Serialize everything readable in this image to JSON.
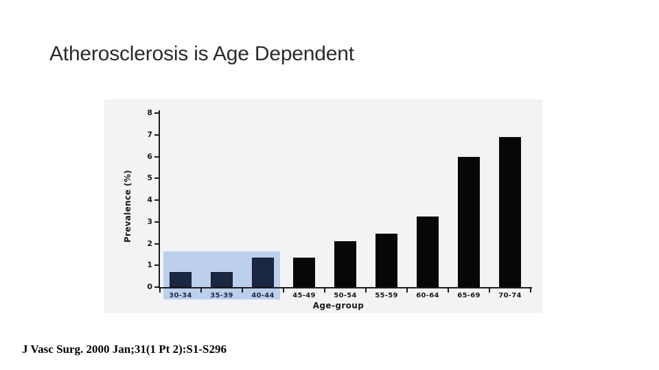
{
  "slide": {
    "title": "Atherosclerosis is Age Dependent",
    "citation": "J Vasc Surg. 2000 Jan;31(1 Pt 2):S1-S296"
  },
  "chart_data": {
    "type": "bar",
    "title": "",
    "xlabel": "Age-group",
    "ylabel": "Prevalence (%)",
    "categories": [
      "30-34",
      "35-39",
      "40-44",
      "45-49",
      "50-54",
      "55-59",
      "60-64",
      "65-69",
      "70-74"
    ],
    "values": [
      0.7,
      0.7,
      1.35,
      1.35,
      2.1,
      2.45,
      3.25,
      6.0,
      6.9
    ],
    "ylim": [
      0,
      8
    ],
    "ytick_step": 1,
    "yticks": [
      0,
      1,
      2,
      3,
      4,
      5,
      6,
      7,
      8
    ],
    "grid": false,
    "legend": null,
    "colors": {
      "bar_default": "#070707",
      "bar_highlighted": "#1c2742",
      "bar_highlighted_border": "#111a2e",
      "highlight_box": "#bccfec",
      "highlighted_label": "#1e2a47",
      "default_label": "#191919",
      "axis": "#1a1a1a",
      "chart_background": "#f2f3f5"
    },
    "highlight": {
      "applies_to": [
        "30-34",
        "35-39",
        "40-44"
      ],
      "box_top_value": 1.65,
      "covers_x_labels": true
    }
  }
}
